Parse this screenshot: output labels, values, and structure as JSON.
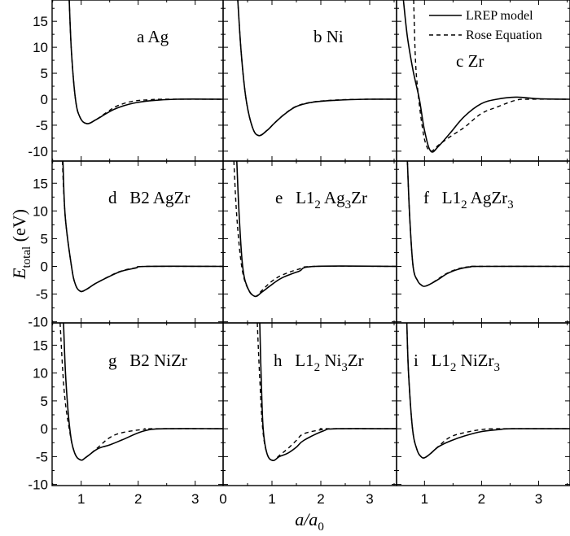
{
  "chart_data": {
    "type": "line",
    "layout": "3x3 panels",
    "xlabel": {
      "main": "a/a",
      "sub": "0"
    },
    "ylabel": {
      "main": "E",
      "sub": "total",
      "unit": " (eV)"
    },
    "grid": false,
    "legend": {
      "placement": "top-right of panel c",
      "entries": [
        {
          "label": "LREP model",
          "style": "solid"
        },
        {
          "label": "Rose Equation",
          "style": "dashed"
        }
      ]
    },
    "yticks": [
      -10,
      -5,
      0,
      5,
      10,
      15
    ],
    "panels": [
      {
        "id": "a",
        "label": [
          {
            "text": "a Ag"
          }
        ],
        "xlim": [
          0.49,
          3.49
        ],
        "ylim": [
          -11.9,
          19.1
        ],
        "series": [
          {
            "name": "LREP model",
            "x": [
              0.79,
              0.83,
              0.9,
              0.98,
              1.1,
              1.25,
              1.45,
              1.63,
              1.9,
              2.2,
              2.67,
              3.49
            ],
            "y": [
              19.1,
              9,
              0,
              -3.5,
              -4.7,
              -4.0,
              -2.7,
              -1.7,
              -0.8,
              -0.3,
              0,
              0
            ]
          },
          {
            "name": "Rose Equation",
            "x": [
              0.79,
              0.83,
              0.9,
              0.98,
              1.1,
              1.25,
              1.45,
              1.63,
              1.9,
              2.2,
              2.5,
              3.49
            ],
            "y": [
              19.1,
              9,
              0,
              -3.5,
              -4.7,
              -4.0,
              -2.5,
              -1.3,
              -0.4,
              -0.1,
              0,
              0
            ]
          }
        ]
      },
      {
        "id": "b",
        "label": [
          {
            "text": "b Ni"
          }
        ],
        "xlim": [
          0,
          3.55
        ],
        "ylim": [
          -11.9,
          19.1
        ],
        "series": [
          {
            "name": "LREP model",
            "x": [
              0.3,
              0.37,
              0.47,
              0.6,
              0.73,
              0.9,
              1.05,
              1.27,
              1.5,
              1.82,
              2.3,
              2.93,
              3.55
            ],
            "y": [
              19.1,
              9,
              0,
              -5.4,
              -7.0,
              -6.0,
              -4.6,
              -2.8,
              -1.4,
              -0.6,
              -0.2,
              0,
              0
            ]
          },
          {
            "name": "Rose Equation",
            "x": [
              0.3,
              0.37,
              0.47,
              0.6,
              0.73,
              0.9,
              1.05,
              1.27,
              1.5,
              1.82,
              2.3,
              2.93,
              3.55
            ],
            "y": [
              19.1,
              9,
              0,
              -5.4,
              -7.0,
              -6.0,
              -4.6,
              -2.75,
              -1.35,
              -0.55,
              -0.15,
              0,
              0
            ]
          }
        ]
      },
      {
        "id": "c",
        "label": [
          {
            "text": "c Zr"
          }
        ],
        "xlim": [
          0.51,
          3.55
        ],
        "ylim": [
          -11.9,
          19.1
        ],
        "series": [
          {
            "name": "LREP model",
            "x": [
              0.63,
              0.7,
              0.8,
              0.91,
              1.0,
              1.11,
              1.25,
              1.45,
              1.7,
              1.99,
              2.27,
              2.6,
              3.0,
              3.55
            ],
            "y": [
              19.1,
              12,
              5.5,
              0,
              -6,
              -10,
              -9.0,
              -6.5,
              -3.3,
              -0.9,
              0,
              0.4,
              0.1,
              0
            ]
          },
          {
            "name": "Rose Equation",
            "x": [
              0.81,
              0.84,
              0.88,
              0.95,
              1.02,
              1.11,
              1.25,
              1.45,
              1.7,
              1.99,
              2.27,
              2.6,
              2.84,
              3.55
            ],
            "y": [
              19.1,
              8,
              2,
              -4.5,
              -8.5,
              -10,
              -8.8,
              -7.2,
              -5.4,
              -2.8,
              -1.5,
              -0.2,
              0,
              0
            ]
          }
        ]
      },
      {
        "id": "d",
        "label": [
          {
            "text": "d   B2 AgZr"
          }
        ],
        "xlim": [
          0.49,
          3.49
        ],
        "ylim": [
          -10.2,
          19
        ],
        "series": [
          {
            "name": "LREP model",
            "x": [
              0.68,
              0.72,
              0.83,
              0.9,
              0.99,
              1.1,
              1.25,
              1.48,
              1.7,
              1.96,
              2.15,
              3.49
            ],
            "y": [
              19,
              9,
              0,
              -3.3,
              -4.5,
              -4.1,
              -3.1,
              -1.9,
              -0.9,
              -0.3,
              0,
              0
            ]
          },
          {
            "name": "Rose Equation",
            "x": [
              0.67,
              0.72,
              0.83,
              0.9,
              0.99,
              1.1,
              1.25,
              1.48,
              1.7,
              1.96,
              2.15,
              3.49
            ],
            "y": [
              19,
              9,
              0,
              -3.3,
              -4.5,
              -4.1,
              -3.1,
              -1.85,
              -0.85,
              -0.25,
              0,
              0
            ]
          }
        ]
      },
      {
        "id": "e",
        "label": [
          {
            "text": "e   L1"
          },
          {
            "sub": "2"
          },
          {
            "text": " Ag"
          },
          {
            "sub": "3"
          },
          {
            "text": "Zr"
          }
        ],
        "xlim": [
          0,
          3.55
        ],
        "ylim": [
          -10.2,
          19
        ],
        "series": [
          {
            "name": "LREP model",
            "x": [
              0.28,
              0.33,
              0.4,
              0.5,
              0.65,
              0.8,
              0.98,
              1.2,
              1.55,
              1.88,
              3.55
            ],
            "y": [
              19,
              9,
              0,
              -3.8,
              -5.4,
              -4.6,
              -3.4,
              -2.1,
              -0.9,
              0,
              0
            ]
          },
          {
            "name": "Rose Equation",
            "x": [
              0.22,
              0.28,
              0.38,
              0.5,
              0.65,
              0.8,
              0.98,
              1.2,
              1.55,
              1.88,
              3.55
            ],
            "y": [
              19,
              9,
              0,
              -3.9,
              -5.4,
              -4.3,
              -2.8,
              -1.6,
              -0.5,
              0,
              0
            ]
          }
        ]
      },
      {
        "id": "f",
        "label": [
          {
            "text": "f   L1"
          },
          {
            "sub": "2"
          },
          {
            "text": " AgZr"
          },
          {
            "sub": "3"
          }
        ],
        "xlim": [
          0.51,
          3.55
        ],
        "ylim": [
          -10.2,
          19
        ],
        "series": [
          {
            "name": "LREP model",
            "x": [
              0.7,
              0.74,
              0.8,
              0.88,
              0.95,
              1.0,
              1.1,
              1.25,
              1.4,
              1.6,
              1.8,
              2.0,
              3.55
            ],
            "y": [
              19,
              9,
              0,
              -2.6,
              -3.4,
              -3.6,
              -3.2,
              -2.3,
              -1.3,
              -0.5,
              -0.1,
              0,
              0
            ]
          },
          {
            "name": "Rose Equation",
            "x": [
              0.7,
              0.74,
              0.8,
              0.88,
              0.95,
              1.0,
              1.1,
              1.25,
              1.4,
              1.6,
              1.8,
              2.0,
              3.55
            ],
            "y": [
              19,
              9,
              0,
              -2.6,
              -3.4,
              -3.6,
              -3.2,
              -2.2,
              -1.2,
              -0.4,
              -0.05,
              0,
              0
            ]
          }
        ]
      },
      {
        "id": "g",
        "label": [
          {
            "text": "g   B2 NiZr"
          }
        ],
        "xlim": [
          0.49,
          3.49
        ],
        "ylim": [
          -10.2,
          19
        ],
        "series": [
          {
            "name": "LREP model",
            "x": [
              0.69,
              0.73,
              0.8,
              0.88,
              0.99,
              1.1,
              1.29,
              1.5,
              1.72,
              2.1,
              2.48,
              3.49
            ],
            "y": [
              19,
              9,
              0,
              -4.2,
              -5.6,
              -5.0,
              -3.6,
              -2.9,
              -2.0,
              -0.4,
              0,
              0
            ]
          },
          {
            "name": "Rose Equation",
            "x": [
              0.63,
              0.7,
              0.79,
              0.88,
              0.99,
              1.1,
              1.29,
              1.5,
              1.72,
              2.1,
              2.24,
              3.49
            ],
            "y": [
              19,
              7,
              0,
              -4.2,
              -5.6,
              -5.0,
              -3.4,
              -1.6,
              -0.7,
              -0.1,
              0,
              0
            ]
          }
        ]
      },
      {
        "id": "h",
        "label": [
          {
            "text": "h   L1"
          },
          {
            "sub": "2"
          },
          {
            "text": " Ni"
          },
          {
            "sub": "3"
          },
          {
            "text": "Zr"
          }
        ],
        "xlim": [
          0,
          3.55
        ],
        "ylim": [
          -10.2,
          19
        ],
        "series": [
          {
            "name": "LREP model",
            "x": [
              0.75,
              0.78,
              0.82,
              0.9,
              1.02,
              1.15,
              1.32,
              1.5,
              1.65,
              2.05,
              2.32,
              3.55
            ],
            "y": [
              19,
              9,
              0,
              -4.5,
              -5.7,
              -5.0,
              -4.4,
              -3.3,
              -2.1,
              -0.4,
              0,
              0
            ]
          },
          {
            "name": "Rose Equation",
            "x": [
              0.7,
              0.75,
              0.81,
              0.9,
              1.02,
              1.15,
              1.32,
              1.5,
              1.65,
              2.05,
              2.1,
              3.55
            ],
            "y": [
              19,
              9,
              0,
              -4.5,
              -5.7,
              -4.8,
              -3.6,
              -2.1,
              -0.9,
              -0.1,
              0,
              0
            ]
          }
        ]
      },
      {
        "id": "i",
        "label": [
          {
            "text": "i   L1"
          },
          {
            "sub": "2"
          },
          {
            "text": " NiZr"
          },
          {
            "sub": "3"
          }
        ],
        "xlim": [
          0.51,
          3.55
        ],
        "ylim": [
          -10.2,
          19
        ],
        "series": [
          {
            "name": "LREP model",
            "x": [
              0.69,
              0.72,
              0.79,
              0.87,
              0.94,
              1.0,
              1.1,
              1.25,
              1.45,
              1.7,
              2.0,
              2.3,
              2.55,
              3.55
            ],
            "y": [
              19,
              10,
              0,
              -3.8,
              -5.0,
              -5.2,
              -4.5,
              -3.2,
              -2.2,
              -1.3,
              -0.5,
              -0.15,
              0,
              0
            ]
          },
          {
            "name": "Rose Equation",
            "x": [
              0.69,
              0.72,
              0.79,
              0.87,
              0.94,
              1.0,
              1.1,
              1.25,
              1.45,
              1.7,
              2.0,
              2.3,
              3.55
            ],
            "y": [
              19,
              10,
              0,
              -3.8,
              -5.0,
              -5.2,
              -4.5,
              -3.1,
              -1.5,
              -0.7,
              -0.15,
              0,
              0
            ]
          }
        ]
      }
    ]
  }
}
